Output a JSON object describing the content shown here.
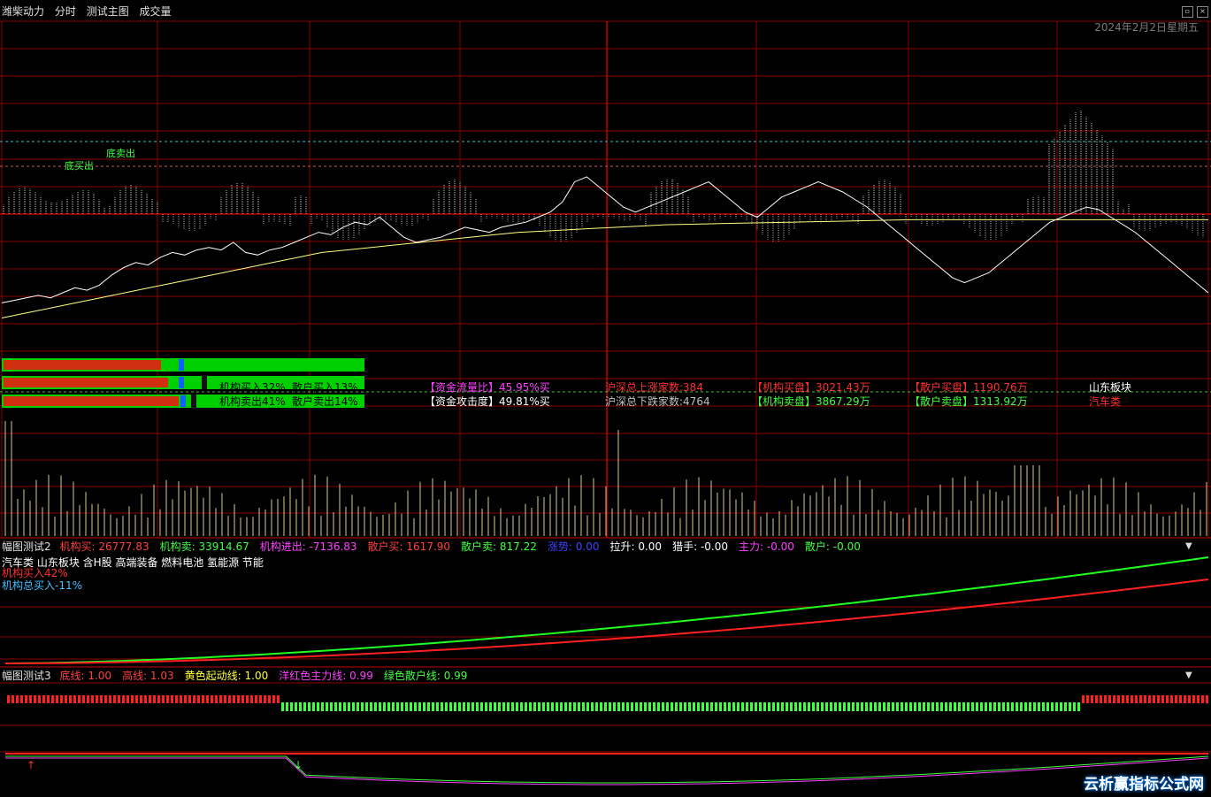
{
  "header": {
    "stock_name": "潍柴动力",
    "view_mode": "分时",
    "main_indicator": "测试主图",
    "volume_label": "成交量",
    "date": "2024年2月2日星期五"
  },
  "main_chart": {
    "annotations": [
      "底买出",
      "底卖出"
    ],
    "side_labels": {
      "top": "山东板块",
      "bottom": "汽车类"
    },
    "info_rows": [
      {
        "label_a": "机构买入32%",
        "label_b": "散户买入13%",
        "flow_ratio": "【资金流量比】45.95%买",
        "rise_count": "沪深总上涨家数:384",
        "inst_buy": "【机构买盘】3021.43万",
        "retail_buy": "【散户买盘】1190.76万"
      },
      {
        "label_a": "机构卖出41%",
        "label_b": "散户卖出14%",
        "attack": "【资金攻击度】49.81%买",
        "fall_count": "沪深总下跌家数:4764",
        "inst_sell": "【机构卖盘】3867.29万",
        "retail_sell": "【散户卖盘】1313.92万"
      }
    ],
    "price_series": [
      0.36,
      0.37,
      0.38,
      0.39,
      0.38,
      0.4,
      0.42,
      0.41,
      0.43,
      0.47,
      0.5,
      0.52,
      0.51,
      0.54,
      0.56,
      0.55,
      0.57,
      0.58,
      0.57,
      0.6,
      0.56,
      0.55,
      0.57,
      0.58,
      0.6,
      0.62,
      0.64,
      0.63,
      0.66,
      0.68,
      0.67,
      0.7,
      0.66,
      0.62,
      0.6,
      0.61,
      0.62,
      0.64,
      0.66,
      0.65,
      0.64,
      0.66,
      0.67,
      0.68,
      0.7,
      0.72,
      0.76,
      0.84,
      0.86,
      0.82,
      0.78,
      0.74,
      0.72,
      0.74,
      0.76,
      0.78,
      0.8,
      0.82,
      0.84,
      0.8,
      0.76,
      0.72,
      0.7,
      0.74,
      0.78,
      0.8,
      0.82,
      0.84,
      0.82,
      0.8,
      0.77,
      0.74,
      0.7,
      0.66,
      0.62,
      0.58,
      0.54,
      0.5,
      0.46,
      0.44,
      0.46,
      0.48,
      0.52,
      0.56,
      0.6,
      0.64,
      0.68,
      0.7,
      0.72,
      0.74,
      0.73,
      0.7,
      0.67,
      0.64,
      0.6,
      0.56,
      0.52,
      0.48,
      0.44,
      0.4
    ],
    "avg_series": [
      0.3,
      0.32,
      0.34,
      0.36,
      0.38,
      0.4,
      0.42,
      0.44,
      0.46,
      0.48,
      0.5,
      0.52,
      0.54,
      0.56,
      0.57,
      0.58,
      0.59,
      0.6,
      0.61,
      0.62,
      0.63,
      0.64,
      0.645,
      0.65,
      0.655,
      0.66,
      0.665,
      0.67,
      0.672,
      0.674,
      0.676,
      0.678,
      0.68,
      0.682,
      0.684,
      0.686,
      0.688,
      0.69,
      0.69,
      0.69,
      0.69,
      0.69,
      0.69,
      0.69,
      0.69,
      0.69,
      0.69,
      0.69,
      0.69,
      0.69
    ]
  },
  "pane2": {
    "title": "幅图测试2",
    "fields": [
      {
        "label": "机构买:",
        "value": "26777.83",
        "color": "#ff4040"
      },
      {
        "label": "机构卖:",
        "value": "33914.67",
        "color": "#40ff40"
      },
      {
        "label": "机构进出:",
        "value": "-7136.83",
        "color": "#ff40ff"
      },
      {
        "label": "散户买:",
        "value": "1617.90",
        "color": "#ff4040"
      },
      {
        "label": "散户卖:",
        "value": "817.22",
        "color": "#40ff40"
      },
      {
        "label": "涨势:",
        "value": "0.00",
        "color": "#4040ff"
      },
      {
        "label": "拉升:",
        "value": "0.00",
        "color": "#ffffff"
      },
      {
        "label": "猎手:",
        "value": "-0.00",
        "color": "#ffffff"
      },
      {
        "label": "主力:",
        "value": "-0.00",
        "color": "#ff40ff"
      },
      {
        "label": "散户:",
        "value": "-0.00",
        "color": "#40ff40"
      }
    ],
    "tags": "汽车类 山东板块 含H股 高端装备 燃料电池 氢能源 节能",
    "inst_buy_pct": "机构买入42%",
    "inst_total_buy": "机构总买入-11%"
  },
  "pane3": {
    "title": "幅图测试3",
    "fields": [
      {
        "label": "底线:",
        "value": "1.00",
        "color": "#ff4040"
      },
      {
        "label": "高线:",
        "value": "1.03",
        "color": "#ff4040"
      },
      {
        "label": "黄色起动线:",
        "value": "1.00",
        "color": "#ffff40"
      },
      {
        "label": "洋红色主力线:",
        "value": "0.99",
        "color": "#ff40ff"
      },
      {
        "label": "绿色散户线:",
        "value": "0.99",
        "color": "#40ff40"
      }
    ]
  },
  "colors": {
    "grid": "#8b0000",
    "price": "#ffffff",
    "avg": "#ffff80",
    "buy": "#ff2020",
    "sell": "#20ff20"
  },
  "watermark": "云析赢指标公式网"
}
